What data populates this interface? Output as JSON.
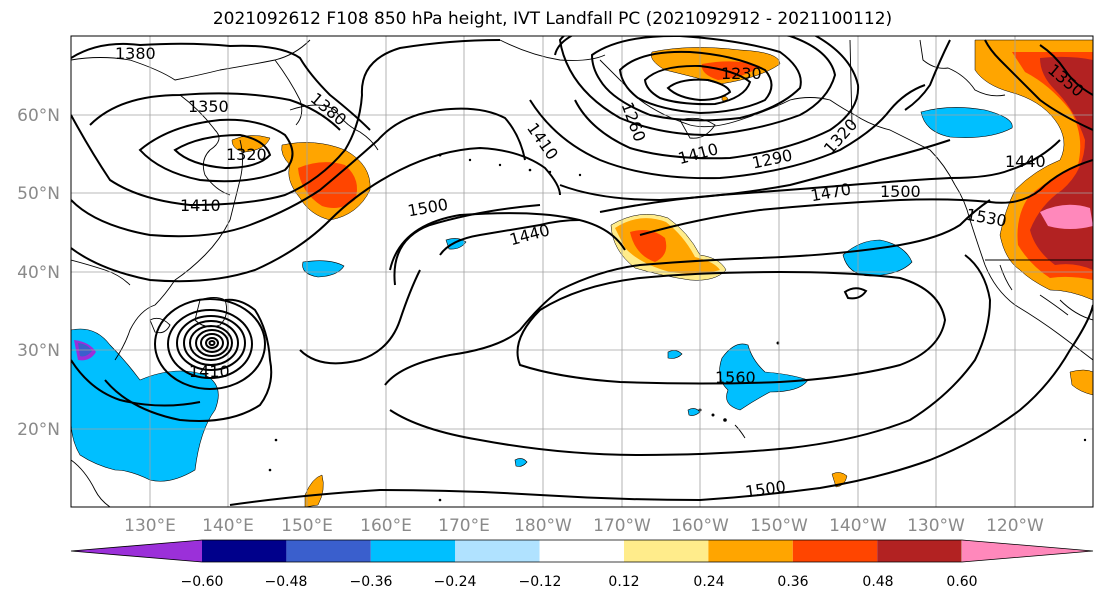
{
  "title": "2021092612 F108 850 hPa height, IVT Landfall PC (2021092912 - 2021100112)",
  "lat_labels": [
    "60°N",
    "50°N",
    "40°N",
    "30°N",
    "20°N"
  ],
  "lon_labels": [
    "130°E",
    "140°E",
    "150°E",
    "160°E",
    "170°E",
    "180°W",
    "170°W",
    "160°W",
    "150°W",
    "140°W",
    "130°W",
    "120°W"
  ],
  "contour_labels": [
    "1380",
    "1350",
    "1380",
    "1320",
    "1410",
    "1410",
    "1260",
    "1230",
    "1290",
    "1320",
    "1350",
    "1500",
    "1440",
    "1470",
    "1500",
    "1530",
    "1440",
    "1410",
    "1410",
    "1560",
    "1500"
  ],
  "colorbar": {
    "colors": [
      "#9b30d9",
      "#00008b",
      "#3a5fcd",
      "#00bfff",
      "#b0e2ff",
      "#ffffff",
      "#ffec8b",
      "#ffa500",
      "#ff4500",
      "#b22222",
      "#ff88bb"
    ],
    "tick_labels": [
      "−0.60",
      "−0.48",
      "−0.36",
      "−0.24",
      "−0.12",
      "0.12",
      "0.24",
      "0.36",
      "0.48",
      "0.60"
    ]
  }
}
